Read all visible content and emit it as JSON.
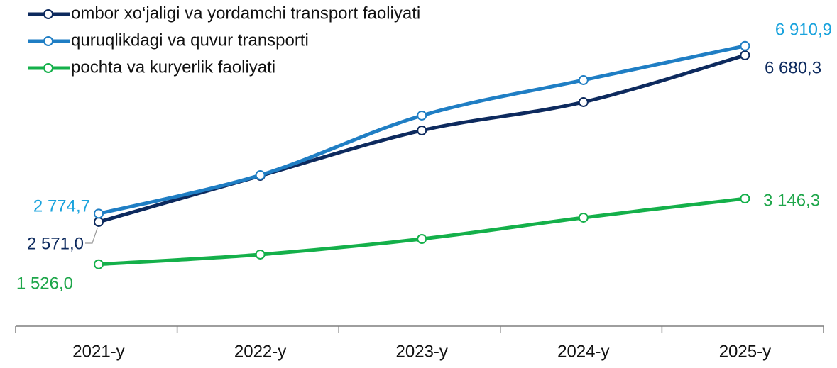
{
  "chart_data": {
    "type": "line",
    "categories": [
      "2021-y",
      "2022-y",
      "2023-y",
      "2024-y",
      "2025-y"
    ],
    "series": [
      {
        "name": "ombor xo‘jaligi va yordamchi transport faoliyati",
        "color": "#0d2a5e",
        "label_color": "#0d2a5e",
        "values": [
          2571.0,
          3708,
          4827,
          5526,
          6680.3
        ],
        "value_labels": [
          "2 571,0",
          null,
          null,
          null,
          "6 680,3"
        ]
      },
      {
        "name": "quruqlikdagi va quvur transporti",
        "color": "#1f7ec4",
        "label_color": "#1aa3dd",
        "values": [
          2774.7,
          3725,
          5194,
          6068,
          6910.9
        ],
        "value_labels": [
          "2 774,7",
          null,
          null,
          null,
          "6 910,9"
        ]
      },
      {
        "name": "pochta va kuryerlik faoliyati",
        "color": "#14b04a",
        "label_color": "#1ea64a",
        "values": [
          1526.0,
          1767,
          2151,
          2676,
          3146.3
        ],
        "value_labels": [
          "1 526,0",
          null,
          null,
          null,
          "3 146,3"
        ]
      }
    ],
    "ylim": [
      0,
      8000
    ],
    "legend": "top-left"
  }
}
